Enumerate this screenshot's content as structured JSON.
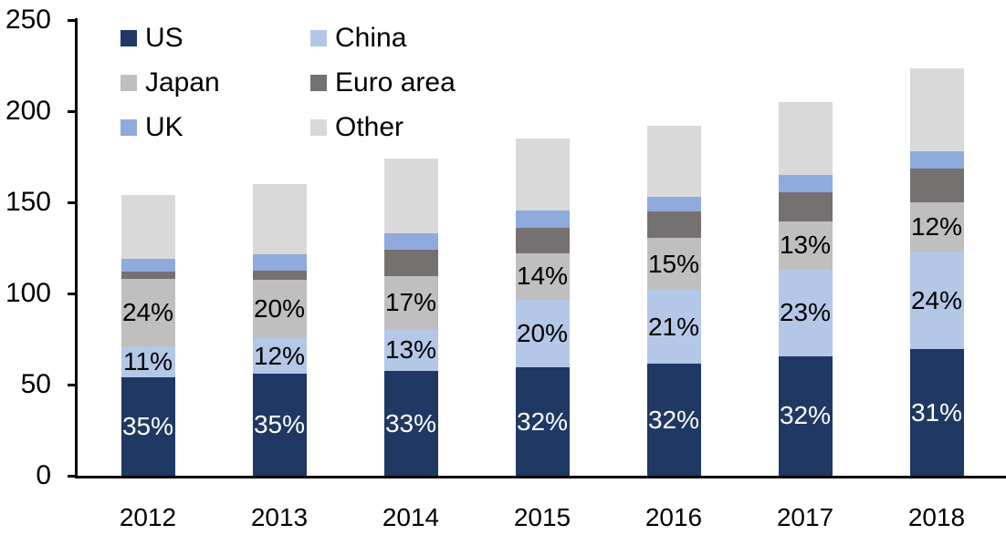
{
  "chart_data": {
    "type": "bar",
    "subtype": "stacked-column",
    "title": "",
    "xlabel": "",
    "ylabel": "",
    "categories": [
      "2012",
      "2013",
      "2014",
      "2015",
      "2016",
      "2017",
      "2018"
    ],
    "y_axis": {
      "min": 0,
      "max": 250,
      "tick_interval": 50,
      "ticks": [
        "0",
        "50",
        "100",
        "150",
        "200",
        "250"
      ],
      "grid": false
    },
    "stack_order_bottom_to_top": [
      "US",
      "China",
      "Japan",
      "Euro area",
      "UK",
      "Other"
    ],
    "series": [
      {
        "name": "US",
        "color": "#1f3864",
        "values": [
          53.9,
          56.0,
          57.4,
          59.2,
          61.4,
          65.6,
          69.3
        ],
        "pct_labels": [
          "35%",
          "35%",
          "33%",
          "32%",
          "32%",
          "32%",
          "31%"
        ],
        "label_color": "#ffffff"
      },
      {
        "name": "China",
        "color": "#b4c7e7",
        "values": [
          16.9,
          19.2,
          22.6,
          37.0,
          40.3,
          47.2,
          53.6
        ],
        "pct_labels": [
          "11%",
          "12%",
          "13%",
          "20%",
          "21%",
          "23%",
          "24%"
        ],
        "label_color": "#000000"
      },
      {
        "name": "Japan",
        "color": "#bfbfbf",
        "values": [
          37.0,
          32.0,
          29.6,
          25.9,
          28.8,
          26.7,
          26.8
        ],
        "pct_labels": [
          "24%",
          "20%",
          "17%",
          "14%",
          "15%",
          "13%",
          "12%"
        ],
        "label_color": "#000000"
      },
      {
        "name": "Euro area",
        "color": "#767171",
        "values": [
          4.0,
          5.0,
          14.5,
          14.0,
          14.5,
          16.0,
          18.5
        ],
        "pct_labels": null,
        "label_color": null
      },
      {
        "name": "UK",
        "color": "#8faadc",
        "values": [
          7.0,
          9.0,
          9.0,
          9.3,
          8.0,
          9.5,
          9.5
        ],
        "pct_labels": null,
        "label_color": null
      },
      {
        "name": "Other",
        "color": "#d9d9d9",
        "values": [
          35.2,
          38.8,
          40.9,
          39.6,
          39.0,
          40.0,
          45.8
        ],
        "pct_labels": null,
        "label_color": null
      }
    ],
    "totals_estimated": [
      154.0,
      160.0,
      174.0,
      185.0,
      192.0,
      205.0,
      223.5
    ],
    "legend": {
      "position": "top-left",
      "columns": 2,
      "entries": [
        "US",
        "China",
        "Japan",
        "Euro area",
        "UK",
        "Other"
      ]
    },
    "axis_color": "#000000"
  }
}
